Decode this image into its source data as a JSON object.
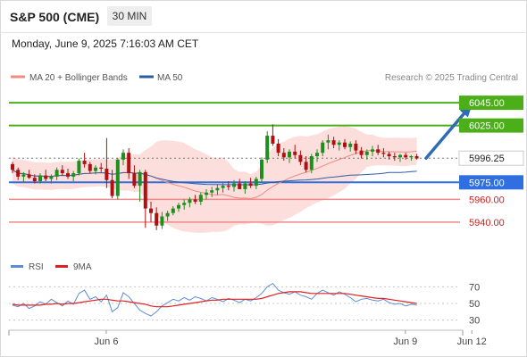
{
  "header": {
    "instrument": "S&P 500 (CME)",
    "timeframe": "30 MIN"
  },
  "datetime": "Monday, June 9, 2025 7:16:03 AM CET",
  "legend": {
    "bb": {
      "label": "MA 20 + Bollinger Bands",
      "color": "#f28b82"
    },
    "ma50": {
      "label": "MA 50",
      "color": "#2e5d9f"
    },
    "credit": "Research © 2025 Trading Central"
  },
  "rsi_legend": {
    "rsi": {
      "label": "RSI",
      "color": "#5b8dd6"
    },
    "ma9": {
      "label": "9MA",
      "color": "#e02020"
    }
  },
  "colors": {
    "up": "#1e8f1e",
    "down": "#b01010",
    "resistance": "#4caf1a",
    "pivot": "#2f6fe0",
    "support": "#f08a8a",
    "arrow": "#2e6db5",
    "band_fill": "#fbd6d3"
  },
  "chart_data": {
    "type": "candlestick",
    "ylim": [
      5925,
      6060
    ],
    "levels": [
      {
        "value": 6045.0,
        "label": "6045.00",
        "kind": "resistance"
      },
      {
        "value": 6025.0,
        "label": "6025.00",
        "kind": "resistance"
      },
      {
        "value": 5996.25,
        "label": "5996.25",
        "kind": "last"
      },
      {
        "value": 5975.0,
        "label": "5975.00",
        "kind": "pivot"
      },
      {
        "value": 5960.0,
        "label": "5960.00",
        "kind": "support"
      },
      {
        "value": 5940.0,
        "label": "5940.00",
        "kind": "support"
      }
    ],
    "x_ticks": [
      "Jun 6",
      "Jun 9",
      "Jun 12"
    ],
    "x_tick_positions": [
      15,
      69,
      81
    ],
    "projection": {
      "from_index": 75,
      "from_value": 5996.25,
      "to_index": 82,
      "to_value": 6045.0
    },
    "candles": [
      [
        5991,
        5993,
        5983,
        5986
      ],
      [
        5986,
        5988,
        5977,
        5980
      ],
      [
        5980,
        5984,
        5975,
        5982
      ],
      [
        5982,
        5986,
        5978,
        5979
      ],
      [
        5979,
        5982,
        5974,
        5976
      ],
      [
        5976,
        5983,
        5974,
        5981
      ],
      [
        5981,
        5986,
        5976,
        5978
      ],
      [
        5978,
        5982,
        5974,
        5980
      ],
      [
        5980,
        5988,
        5977,
        5986
      ],
      [
        5986,
        5990,
        5981,
        5983
      ],
      [
        5983,
        5987,
        5978,
        5980
      ],
      [
        5980,
        5985,
        5976,
        5983
      ],
      [
        5983,
        5996,
        5981,
        5994
      ],
      [
        5994,
        6001,
        5988,
        5991
      ],
      [
        5991,
        5993,
        5983,
        5985
      ],
      [
        5985,
        5990,
        5982,
        5988
      ],
      [
        5988,
        5992,
        5984,
        5987
      ],
      [
        5987,
        6014,
        5970,
        5977
      ],
      [
        5977,
        5986,
        5961,
        5963
      ],
      [
        5963,
        5996,
        5960,
        5995
      ],
      [
        5995,
        6004,
        5990,
        6001
      ],
      [
        6001,
        6005,
        5978,
        5983
      ],
      [
        5983,
        5990,
        5970,
        5972
      ],
      [
        5972,
        5986,
        5958,
        5984
      ],
      [
        5984,
        5986,
        5935,
        5952
      ],
      [
        5952,
        5958,
        5940,
        5948
      ],
      [
        5948,
        5953,
        5933,
        5937
      ],
      [
        5937,
        5949,
        5934,
        5945
      ],
      [
        5945,
        5950,
        5941,
        5948
      ],
      [
        5948,
        5954,
        5946,
        5952
      ],
      [
        5952,
        5957,
        5949,
        5955
      ],
      [
        5955,
        5960,
        5951,
        5957
      ],
      [
        5957,
        5962,
        5953,
        5960
      ],
      [
        5960,
        5964,
        5956,
        5958
      ],
      [
        5958,
        5966,
        5955,
        5964
      ],
      [
        5964,
        5969,
        5960,
        5966
      ],
      [
        5966,
        5971,
        5962,
        5968
      ],
      [
        5968,
        5973,
        5964,
        5970
      ],
      [
        5970,
        5975,
        5966,
        5972
      ],
      [
        5972,
        5976,
        5968,
        5971
      ],
      [
        5971,
        5977,
        5967,
        5974
      ],
      [
        5974,
        5978,
        5970,
        5969
      ],
      [
        5969,
        5976,
        5965,
        5974
      ],
      [
        5974,
        5979,
        5970,
        5972
      ],
      [
        5972,
        5980,
        5969,
        5978
      ],
      [
        5978,
        5997,
        5975,
        5995
      ],
      [
        5995,
        6020,
        5992,
        6016
      ],
      [
        6016,
        6026,
        6007,
        6009
      ],
      [
        6009,
        6013,
        5998,
        6001
      ],
      [
        6001,
        6005,
        5994,
        5997
      ],
      [
        5997,
        6004,
        5992,
        6002
      ],
      [
        6002,
        6008,
        5996,
        5999
      ],
      [
        5999,
        6003,
        5990,
        5993
      ],
      [
        5993,
        5998,
        5984,
        5986
      ],
      [
        5986,
        6000,
        5983,
        5998
      ],
      [
        5998,
        6004,
        5993,
        6001
      ],
      [
        6001,
        6012,
        5998,
        6010
      ],
      [
        6010,
        6017,
        6004,
        6012
      ],
      [
        6012,
        6015,
        6005,
        6008
      ],
      [
        6008,
        6012,
        6003,
        6010
      ],
      [
        6010,
        6013,
        6004,
        6006
      ],
      [
        6006,
        6011,
        6002,
        6009
      ],
      [
        6009,
        6012,
        6000,
        6003
      ],
      [
        6003,
        6006,
        5996,
        5999
      ],
      [
        5999,
        6004,
        5995,
        6002
      ],
      [
        6002,
        6007,
        5998,
        6004
      ],
      [
        6004,
        6008,
        5999,
        6001
      ],
      [
        6001,
        6005,
        5997,
        6000
      ],
      [
        6000,
        6002,
        5995,
        5998
      ],
      [
        5998,
        6001,
        5994,
        5997
      ],
      [
        5997,
        6000,
        5993,
        5999
      ],
      [
        5999,
        6001,
        5995,
        5997
      ],
      [
        5997,
        5999,
        5994,
        5998
      ],
      [
        5998,
        6000,
        5995,
        5996
      ]
    ],
    "rsi": {
      "ylim": [
        20,
        80
      ],
      "ticks": [
        "70",
        "50",
        "30"
      ],
      "rsi_values": [
        48,
        46,
        50,
        44,
        47,
        52,
        49,
        55,
        51,
        47,
        53,
        49,
        62,
        66,
        55,
        58,
        52,
        60,
        40,
        45,
        63,
        58,
        50,
        42,
        38,
        35,
        40,
        47,
        51,
        55,
        53,
        57,
        54,
        58,
        56,
        53,
        57,
        55,
        52,
        56,
        54,
        51,
        55,
        53,
        57,
        62,
        70,
        74,
        66,
        63,
        61,
        64,
        60,
        58,
        55,
        62,
        66,
        63,
        60,
        64,
        61,
        57,
        52,
        55,
        56,
        54,
        53,
        55,
        51,
        49,
        50,
        47,
        49,
        48
      ],
      "ma9_values": [
        49,
        48,
        48,
        48,
        48,
        48,
        49,
        49,
        50,
        49,
        50,
        50,
        51,
        52,
        53,
        54,
        55,
        55,
        54,
        53,
        53,
        52,
        51,
        50,
        49,
        47,
        46,
        46,
        46,
        47,
        48,
        49,
        50,
        51,
        52,
        53,
        54,
        54,
        55,
        55,
        55,
        55,
        55,
        55,
        55,
        56,
        58,
        60,
        62,
        63,
        64,
        64,
        64,
        63,
        62,
        62,
        62,
        62,
        62,
        62,
        62,
        61,
        60,
        59,
        58,
        57,
        56,
        56,
        55,
        54,
        53,
        52,
        51,
        50
      ]
    }
  }
}
